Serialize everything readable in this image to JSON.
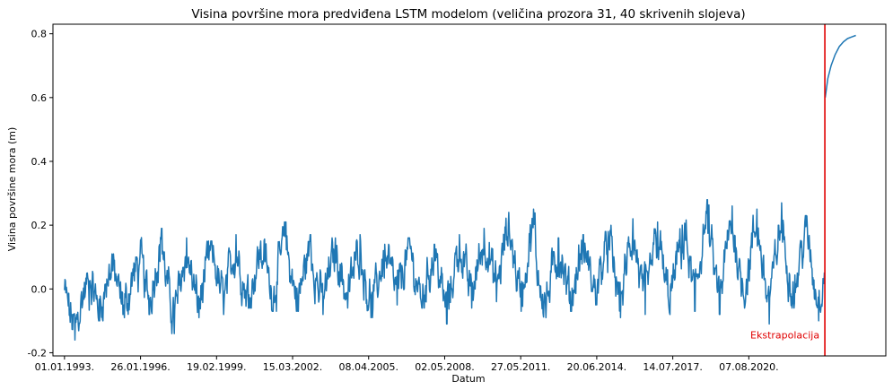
{
  "chart_data": {
    "type": "line",
    "title": "Visina površine mora predviđena LSTM modelom (veličina prozora 31, 40 skrivenih slojeva)",
    "xlabel": "Datum",
    "ylabel": "Visina površine mora (m)",
    "x_ticks": [
      "01.01.1993.",
      "26.01.1996.",
      "19.02.1999.",
      "15.03.2002.",
      "08.04.2005.",
      "02.05.2008.",
      "27.05.2011.",
      "20.06.2014.",
      "14.07.2017.",
      "07.08.2020."
    ],
    "x_range": [
      "1992-07-15",
      "2026-02-15"
    ],
    "y_ticks": [
      -0.2,
      0.0,
      0.2,
      0.4,
      0.6,
      0.8
    ],
    "ylim": [
      -0.21,
      0.83
    ],
    "grid": false,
    "line_color": "#1f77b4",
    "marker_color": "#e00000",
    "series": [
      {
        "x_start": "1993-01-01",
        "x_end": "2023-08-31",
        "x_step": "7 days",
        "seasonal_peaks_y": [
          0.05,
          0.11,
          0.1,
          0.19,
          0.16,
          0.15,
          0.17,
          0.15,
          0.21,
          0.17,
          0.16,
          0.17,
          0.14,
          0.16,
          0.14,
          0.17,
          0.19,
          0.24,
          0.25,
          0.16,
          0.17,
          0.18,
          0.22,
          0.21,
          0.2,
          0.28,
          0.26,
          0.25,
          0.27,
          0.23,
          0.24
        ],
        "seasonal_troughs_y": [
          -0.16,
          -0.1,
          -0.09,
          -0.08,
          -0.14,
          -0.09,
          -0.08,
          -0.06,
          -0.07,
          -0.07,
          -0.08,
          -0.06,
          -0.09,
          -0.05,
          -0.06,
          -0.11,
          -0.06,
          -0.04,
          -0.07,
          -0.09,
          -0.07,
          -0.05,
          -0.09,
          -0.08,
          -0.08,
          -0.07,
          -0.08,
          -0.06,
          -0.11,
          -0.06,
          -0.1
        ]
      },
      {
        "x": [
          "2023-09-07",
          "2023-10-15",
          "2023-12-01",
          "2024-02-01",
          "2024-04-01",
          "2024-06-01",
          "2024-08-01",
          "2024-10-01",
          "2024-11-30"
        ],
        "y": [
          0.6,
          0.66,
          0.7,
          0.735,
          0.76,
          0.775,
          0.785,
          0.79,
          0.795
        ]
      }
    ],
    "vertical_marker": {
      "x": "2023-09-01",
      "label": "Ekstrapolacija"
    }
  }
}
